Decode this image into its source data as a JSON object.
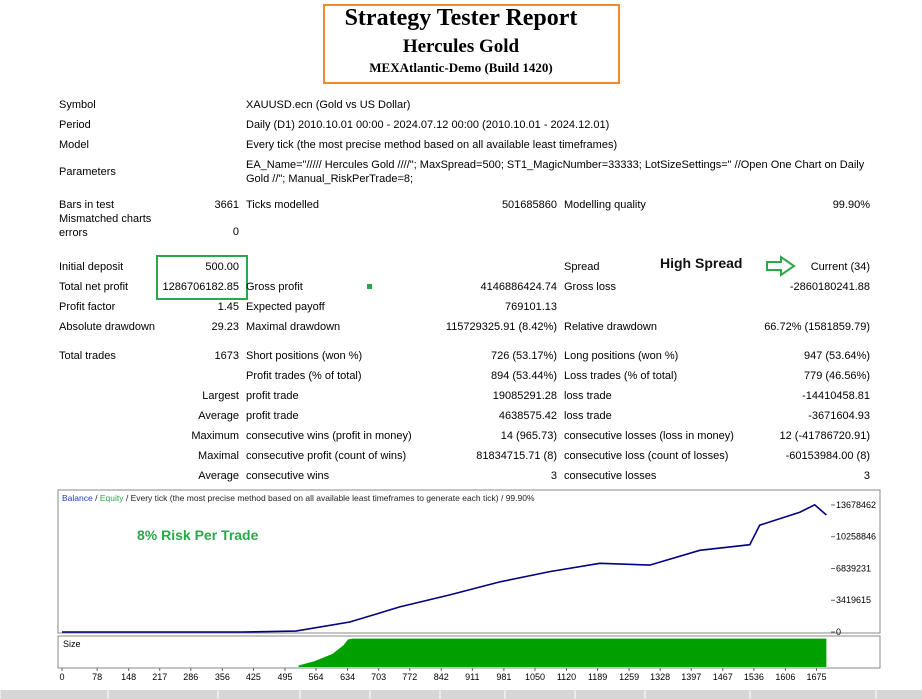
{
  "header": {
    "title": "Strategy Tester Report",
    "subtitle": "Hercules Gold",
    "server": "MEXAtlantic-Demo (Build 1420)"
  },
  "report": {
    "rows": [
      [
        "Symbol",
        null,
        "XAUUSD.ecn (Gold vs US Dollar)",
        null,
        null,
        null
      ],
      [
        "Period",
        null,
        "Daily (D1) 2010.10.01 00:00 - 2024.07.12 00:00 (2010.10.01 - 2024.12.01)",
        null,
        null,
        null
      ],
      [
        "Model",
        null,
        "Every tick (the most precise method based on all available least timeframes)",
        null,
        null,
        null
      ],
      [
        "Parameters",
        null,
        "EA_Name=\"///// Hercules Gold ////\"; MaxSpread=500; ST1_MagicNumber=33333; LotSizeSettings=\" //Open One Chart on Daily Gold //\"; Manual_RiskPerTrade=8;",
        null,
        null,
        null
      ],
      [
        "Bars in test",
        "3661",
        "Ticks modelled",
        "501685860",
        "Modelling quality",
        "99.90%"
      ],
      [
        "Mismatched charts errors",
        "0",
        null,
        null,
        null,
        null
      ],
      [
        "Initial deposit",
        "500.00",
        null,
        null,
        "Spread",
        "Current (34)"
      ],
      [
        "Total net profit",
        "1286706182.85",
        "Gross profit",
        "4146886424.74",
        "Gross loss",
        "-2860180241.88"
      ],
      [
        "Profit factor",
        "1.45",
        "Expected payoff",
        "769101.13",
        null,
        null
      ],
      [
        "Absolute drawdown",
        "29.23",
        "Maximal drawdown",
        "115729325.91 (8.42%)",
        "Relative drawdown",
        "66.72% (1581859.79)"
      ],
      [
        "Total trades",
        "1673",
        "Short positions (won %)",
        "726 (53.17%)",
        "Long positions (won %)",
        "947 (53.64%)"
      ],
      [
        null,
        null,
        "Profit trades (% of total)",
        "894 (53.44%)",
        "Loss trades (% of total)",
        "779 (46.56%)"
      ],
      [
        null,
        "Largest",
        "profit trade",
        "19085291.28",
        "loss trade",
        "-14410458.81"
      ],
      [
        null,
        "Average",
        "profit trade",
        "4638575.42",
        "loss trade",
        "-3671604.93"
      ],
      [
        null,
        "Maximum",
        "consecutive wins (profit in money)",
        "14 (965.73)",
        "consecutive losses (loss in money)",
        "12 (-41786720.91)"
      ],
      [
        null,
        "Maximal",
        "consecutive profit (count of wins)",
        "81834715.71 (8)",
        "consecutive loss (count of losses)",
        "-60153984.00 (8)"
      ],
      [
        null,
        "Average",
        "consecutive wins",
        "3",
        "consecutive losses",
        "3"
      ]
    ]
  },
  "annotations": {
    "spread": "High Spread",
    "risk": "8% Risk Per Trade"
  },
  "chart_data": {
    "type": "line",
    "legend_equity": "Equity",
    "separator": "/",
    "subtitle": "/ Every tick (the most precise method based on all available least timeframes to generate each tick) / 99.90%",
    "series": [
      {
        "name": "Balance",
        "color": "#000080",
        "x": [
          0,
          400,
          519,
          639,
          750,
          861,
          972,
          1083,
          1194,
          1305,
          1416,
          1527,
          1549,
          1638,
          1671,
          1697
        ],
        "values": [
          0,
          0,
          100000,
          1080000,
          2700000,
          4000000,
          5400000,
          6500000,
          7400000,
          7200000,
          8800000,
          9400000,
          11500000,
          12900000,
          13700000,
          12600000
        ]
      }
    ],
    "xlim": [
      0,
      1705
    ],
    "ylim": [
      0,
      15078000
    ],
    "yticks": [
      0,
      3419615,
      6839231,
      10258846,
      13678462
    ],
    "xticks": [
      0,
      78,
      148,
      217,
      286,
      356,
      425,
      495,
      564,
      634,
      703,
      772,
      842,
      911,
      981,
      1050,
      1120,
      1189,
      1259,
      1328,
      1397,
      1467,
      1536,
      1606,
      1675
    ],
    "size": {
      "name": "Size",
      "color": "#00a000",
      "ylim": [
        0,
        1
      ],
      "x": [
        525,
        560,
        600,
        625,
        635,
        645,
        1697
      ],
      "values": [
        0.05,
        0.2,
        0.45,
        0.75,
        0.95,
        0.98,
        0.98
      ]
    }
  }
}
